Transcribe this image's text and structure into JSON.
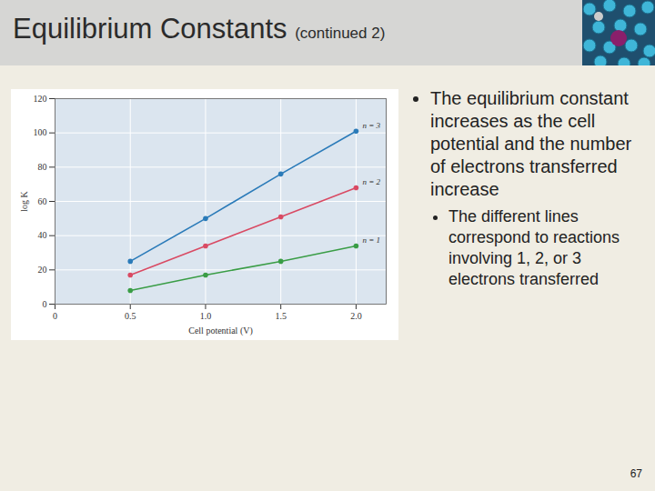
{
  "slide": {
    "title": "Equilibrium Constants",
    "title_suffix": "(continued 2)",
    "bullets": [
      "The equilibrium constant increases as the cell potential and the number of electrons transferred increase"
    ],
    "sub_bullets": [
      "The different lines correspond to reactions involving 1, 2, or 3 electrons transferred"
    ],
    "page_number": "67"
  },
  "chart_data": {
    "type": "line",
    "x_label": "Cell potential (V)",
    "y_label": "log K",
    "x": [
      0.5,
      1.0,
      1.5,
      2.0
    ],
    "series": [
      {
        "name": "n = 3",
        "color": "#2b7bb9",
        "marker": "circle",
        "values": [
          25,
          50,
          76,
          101
        ]
      },
      {
        "name": "n = 2",
        "color": "#d94a63",
        "marker": "circle",
        "values": [
          17,
          34,
          51,
          68
        ]
      },
      {
        "name": "n = 1",
        "color": "#3a9d46",
        "marker": "circle",
        "values": [
          8,
          17,
          25,
          34
        ]
      }
    ],
    "xlim": [
      0,
      2.2
    ],
    "xticks": [
      0,
      0.5,
      {
        "value": 1,
        "label": "1.0"
      },
      1.5,
      {
        "value": 2,
        "label": "2.0"
      }
    ],
    "ylim": [
      0,
      120
    ],
    "yticks": [
      0,
      20,
      40,
      60,
      80,
      100,
      120
    ],
    "grid": true
  }
}
